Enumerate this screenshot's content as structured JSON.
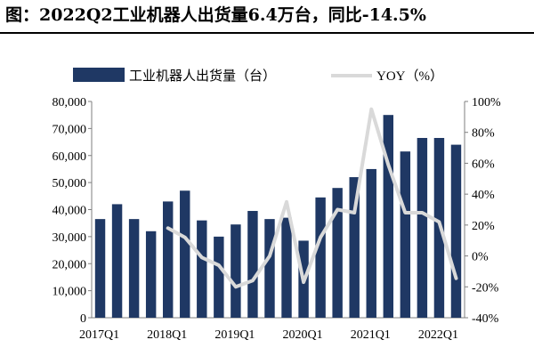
{
  "header": {
    "title": "图：2022Q2工业机器人出货量6.4万台，同比-14.5%"
  },
  "chart_data": {
    "type": "bar",
    "categories": [
      "2017Q1",
      "2017Q2",
      "2017Q3",
      "2017Q4",
      "2018Q1",
      "2018Q2",
      "2018Q3",
      "2018Q4",
      "2019Q1",
      "2019Q2",
      "2019Q3",
      "2019Q4",
      "2020Q1",
      "2020Q2",
      "2020Q3",
      "2020Q4",
      "2021Q1",
      "2021Q2",
      "2021Q3",
      "2021Q4",
      "2022Q1",
      "2022Q2"
    ],
    "x_tick_labels": [
      "2017Q1",
      "2018Q1",
      "2019Q1",
      "2020Q1",
      "2021Q1",
      "2022Q1"
    ],
    "series": [
      {
        "name": "工业机器人出货量（台）",
        "type": "bar",
        "axis": "left",
        "color": "#1f3864",
        "values": [
          36500,
          42000,
          36500,
          32000,
          43000,
          47000,
          36000,
          30000,
          34500,
          39500,
          36500,
          37000,
          28500,
          44500,
          48000,
          52000,
          55000,
          75000,
          61500,
          66500,
          66500,
          64000
        ]
      },
      {
        "name": "YOY（%）",
        "type": "line",
        "axis": "right",
        "color": "#d9d9d9",
        "values": [
          null,
          null,
          null,
          null,
          18,
          12,
          -1,
          -6,
          -20,
          -16,
          0,
          35,
          -17,
          12,
          30,
          28,
          95,
          59,
          28,
          28,
          22,
          -14.5
        ]
      }
    ],
    "y_left": {
      "min": 0,
      "max": 80000,
      "ticks": [
        "0",
        "10,000",
        "20,000",
        "30,000",
        "40,000",
        "50,000",
        "60,000",
        "70,000",
        "80,000"
      ]
    },
    "y_right": {
      "min": -40,
      "max": 100,
      "ticks": [
        "-40%",
        "-20%",
        "0%",
        "20%",
        "40%",
        "60%",
        "80%",
        "100%"
      ]
    },
    "grid": false,
    "legend_position": "top"
  }
}
